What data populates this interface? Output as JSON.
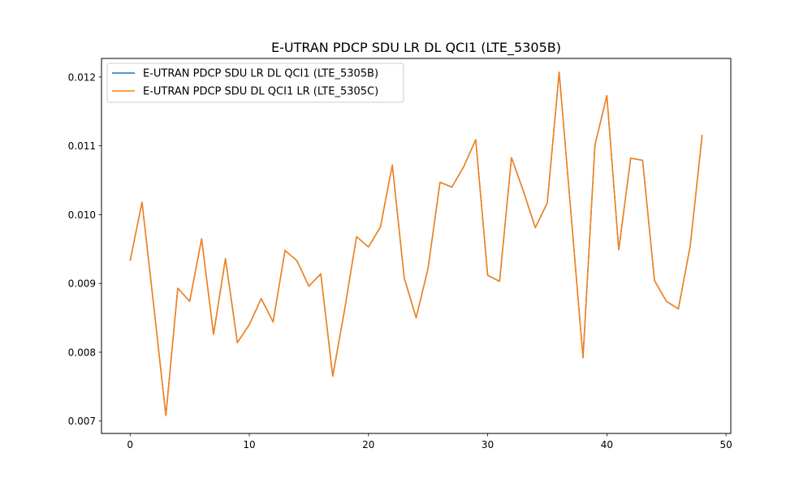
{
  "chart_data": {
    "type": "line",
    "title": "E-UTRAN PDCP SDU LR DL QCI1 (LTE_5305B)",
    "xlabel": "",
    "ylabel": "",
    "xlim": [
      -2.4,
      50.4
    ],
    "ylim": [
      0.00682,
      0.01227
    ],
    "x_ticks": [
      0,
      10,
      20,
      30,
      40,
      50
    ],
    "y_ticks": [
      0.007,
      0.008,
      0.009,
      0.01,
      0.011,
      0.012
    ],
    "y_tick_labels": [
      "0.007",
      "0.008",
      "0.009",
      "0.010",
      "0.011",
      "0.012"
    ],
    "grid": false,
    "legend_position": "top-left",
    "x": [
      0,
      1,
      2,
      3,
      4,
      5,
      6,
      7,
      8,
      9,
      10,
      11,
      12,
      13,
      14,
      15,
      16,
      17,
      18,
      19,
      20,
      21,
      22,
      23,
      24,
      25,
      26,
      27,
      28,
      29,
      30,
      31,
      32,
      33,
      34,
      35,
      36,
      37,
      38,
      39,
      40,
      41,
      42,
      43,
      44,
      45,
      46,
      47,
      48
    ],
    "series": [
      {
        "name": "E-UTRAN PDCP SDU LR DL QCI1 (LTE_5305B)",
        "color": "#1f77b4",
        "values": [
          0.00933,
          0.01018,
          0.00865,
          0.00708,
          0.00893,
          0.00874,
          0.00965,
          0.00826,
          0.00936,
          0.00814,
          0.0084,
          0.00878,
          0.00844,
          0.00948,
          0.00933,
          0.00896,
          0.00914,
          0.00765,
          0.00862,
          0.00968,
          0.00953,
          0.00982,
          0.01072,
          0.00908,
          0.0085,
          0.00922,
          0.01047,
          0.0104,
          0.0107,
          0.01109,
          0.00912,
          0.00903,
          0.01083,
          0.01034,
          0.00981,
          0.01017,
          0.01207,
          0.01,
          0.00792,
          0.01101,
          0.01173,
          0.00949,
          0.01082,
          0.01079,
          0.00904,
          0.00874,
          0.00863,
          0.00955,
          0.01116
        ]
      },
      {
        "name": "E-UTRAN PDCP SDU DL QCI1 LR (LTE_5305C)",
        "color": "#ff7f0e",
        "values": [
          0.00933,
          0.01018,
          0.00865,
          0.00708,
          0.00893,
          0.00874,
          0.00965,
          0.00826,
          0.00936,
          0.00814,
          0.0084,
          0.00878,
          0.00844,
          0.00948,
          0.00933,
          0.00896,
          0.00914,
          0.00765,
          0.00862,
          0.00968,
          0.00953,
          0.00982,
          0.01072,
          0.00908,
          0.0085,
          0.00922,
          0.01047,
          0.0104,
          0.0107,
          0.01109,
          0.00912,
          0.00903,
          0.01083,
          0.01034,
          0.00981,
          0.01017,
          0.01207,
          0.01,
          0.00792,
          0.01101,
          0.01173,
          0.00949,
          0.01082,
          0.01079,
          0.00904,
          0.00874,
          0.00863,
          0.00955,
          0.01116
        ]
      }
    ]
  }
}
